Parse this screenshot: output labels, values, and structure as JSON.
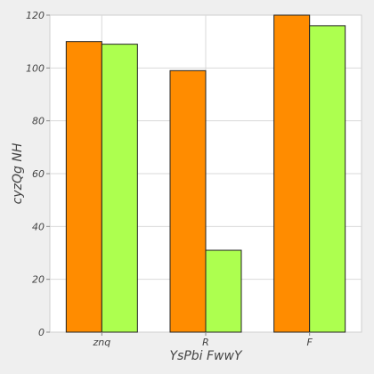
{
  "chart_data": {
    "type": "bar",
    "categories": [
      "znq",
      "R",
      "F"
    ],
    "series": [
      {
        "values": [
          110,
          99,
          120
        ],
        "color": "#ff8c00"
      },
      {
        "values": [
          109,
          31,
          116
        ],
        "color": "#adff4f"
      }
    ],
    "xlabel": "YsPbi FwwY",
    "ylabel": "cyzQg NH",
    "ylim": [
      0,
      120
    ],
    "yticks": [
      0,
      20,
      40,
      60,
      80,
      100,
      120
    ],
    "grid": true,
    "legend": "none"
  }
}
